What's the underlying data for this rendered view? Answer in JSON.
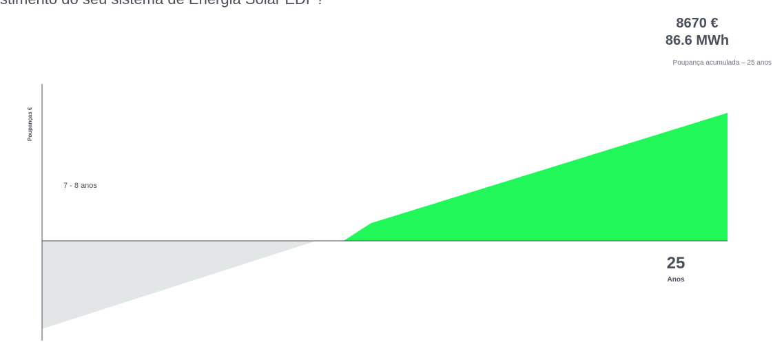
{
  "header": {
    "headline": "stimento do seu sistema de Energia Solar EDP?"
  },
  "summary": {
    "money": "8670 €",
    "energy": "86.6 MWh",
    "caption": "Poupança acumulada – 25 anos"
  },
  "chart_data": {
    "type": "area",
    "title": "",
    "ylabel": "Poupanças €",
    "xlabel": "Anos",
    "x_end_label": "25",
    "annotation": "7 - 8 anos",
    "x_range": [
      0,
      25
    ],
    "series": [
      {
        "name": "",
        "color": "#e3e6e6",
        "points": [
          [
            0,
            -100
          ],
          [
            10,
            0
          ]
        ]
      },
      {
        "name": "",
        "color": "#22f75a",
        "points": [
          [
            11,
            0
          ],
          [
            12,
            20
          ],
          [
            25,
            145
          ]
        ]
      }
    ],
    "ylim": [
      -100,
      150
    ],
    "legend": "none",
    "grid": false
  }
}
